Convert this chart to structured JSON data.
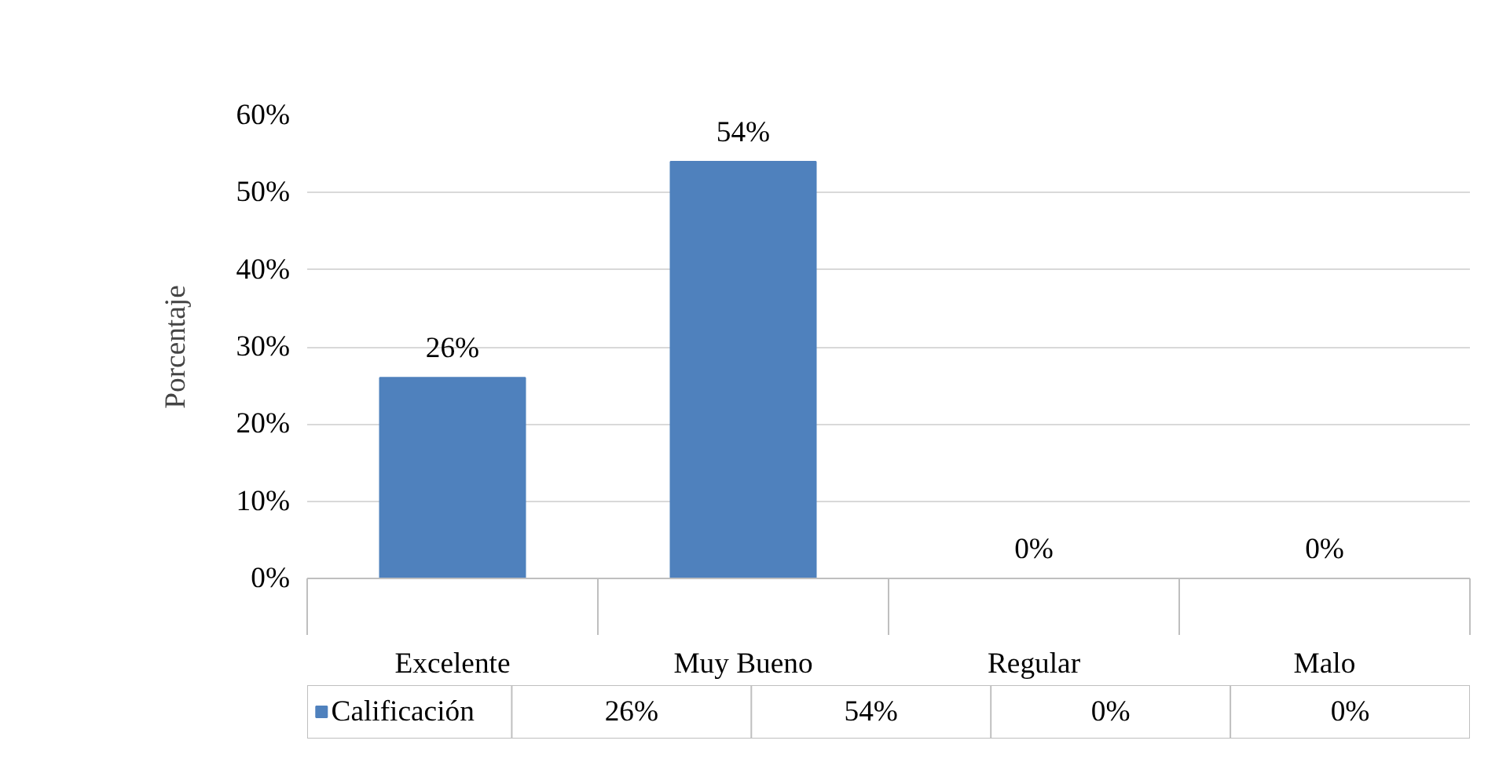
{
  "chart_data": {
    "type": "bar",
    "ylabel": "Porcentaje",
    "categories": [
      "Excelente",
      "Muy Bueno",
      "Regular",
      "Malo"
    ],
    "series": [
      {
        "name": "Calificación",
        "color": "#4f81bd",
        "values": [
          26,
          54,
          0,
          0
        ],
        "value_labels": [
          "26%",
          "54%",
          "0%",
          "0%"
        ]
      }
    ],
    "ylim": [
      0,
      60
    ],
    "yticks": [
      {
        "value": 0,
        "label": "0%"
      },
      {
        "value": 10,
        "label": "10%"
      },
      {
        "value": 20,
        "label": "20%"
      },
      {
        "value": 30,
        "label": "30%"
      },
      {
        "value": 40,
        "label": "40%"
      },
      {
        "value": 50,
        "label": "50%"
      },
      {
        "value": 60,
        "label": "60%"
      }
    ],
    "grid": "y",
    "legend": "bottom"
  }
}
